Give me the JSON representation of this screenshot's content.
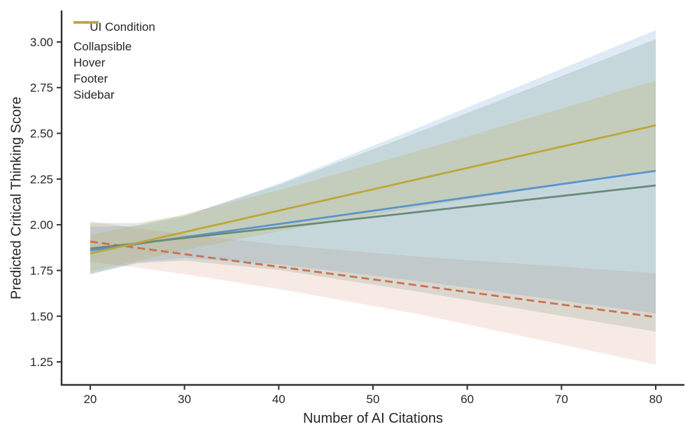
{
  "chart_data": {
    "type": "line",
    "title": "",
    "xlabel": "Number of AI Citations",
    "ylabel": "Predicted Critical Thinking Score",
    "legend_title": "UI Condition",
    "legend_position": "upper left",
    "grid": false,
    "x_ticks": [
      20,
      30,
      40,
      50,
      60,
      70,
      80
    ],
    "y_ticks": [
      1.25,
      1.5,
      1.75,
      2.0,
      2.25,
      2.5,
      2.75,
      3.0
    ],
    "y_tick_labels": [
      "1.25",
      "1.50",
      "1.75",
      "2.00",
      "2.25",
      "2.50",
      "2.75",
      "3.00"
    ],
    "x_tick_labels": [
      "20",
      "30",
      "40",
      "50",
      "60",
      "70",
      "80"
    ],
    "xlim": [
      16.96,
      83.04
    ],
    "ylim": [
      1.124,
      3.172
    ],
    "x": [
      20,
      25,
      30,
      40,
      55,
      80
    ],
    "series": [
      {
        "name": "Collapsible",
        "color": "#ca7350",
        "dashed": true,
        "fill": "rgba(202,115,80,0.15)",
        "line": [
          1.908,
          1.874,
          1.839,
          1.77,
          1.667,
          1.495
        ],
        "ci_upper": [
          2.018,
          1.981,
          1.948,
          1.891,
          1.825,
          1.735
        ],
        "ci_lower": [
          1.798,
          1.766,
          1.73,
          1.649,
          1.51,
          1.235
        ]
      },
      {
        "name": "Hover",
        "color": "#5b94cd",
        "dashed": false,
        "fill": "rgba(91,148,205,0.20)",
        "line": [
          1.859,
          1.895,
          1.932,
          2.004,
          2.113,
          2.295
        ],
        "ci_upper": [
          1.989,
          1.995,
          2.046,
          2.225,
          2.535,
          3.065
        ],
        "ci_lower": [
          1.729,
          1.795,
          1.818,
          1.783,
          1.691,
          1.515
        ]
      },
      {
        "name": "Footer",
        "color": "#6b8b77",
        "dashed": false,
        "fill": "rgba(107,139,119,0.20)",
        "line": [
          1.87,
          1.899,
          1.928,
          1.985,
          2.071,
          2.215
        ],
        "ci_upper": [
          2.01,
          2.009,
          2.052,
          2.218,
          2.51,
          3.015
        ],
        "ci_lower": [
          1.73,
          1.789,
          1.804,
          1.753,
          1.632,
          1.415
        ]
      },
      {
        "name": "Sidebar",
        "color": "#bca73c",
        "dashed": false,
        "fill": "rgba(188,167,60,0.20)",
        "line": [
          1.843,
          1.901,
          1.96,
          2.077,
          2.252,
          2.544
        ],
        "ci_upper": [
          1.943,
          1.998,
          2.058,
          2.19,
          2.407,
          2.789
        ],
        "ci_lower": [
          1.743,
          1.804,
          1.862,
          1.964,
          2.097,
          2.299
        ]
      }
    ],
    "style": {
      "text_color": "#262626",
      "spine_color": "#303030",
      "background": "#ffffff"
    }
  }
}
